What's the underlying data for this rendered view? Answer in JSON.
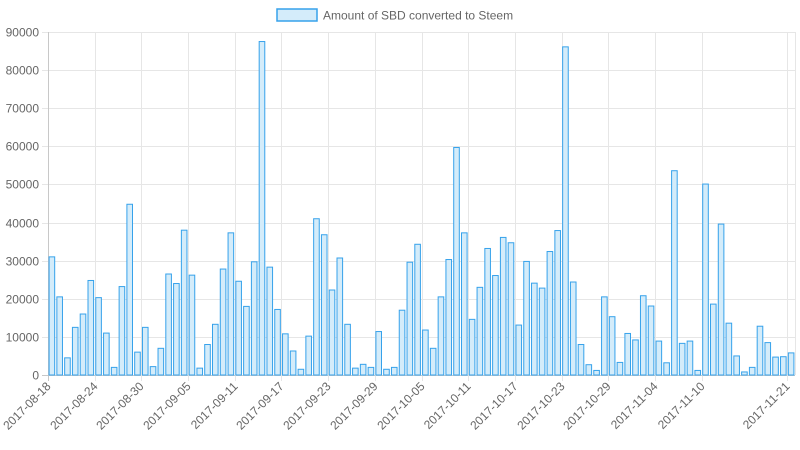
{
  "chart_data": {
    "type": "bar",
    "legend": {
      "position": "top",
      "label": "Amount of SBD converted to Steem"
    },
    "ylim": [
      0,
      90000
    ],
    "yticks": [
      0,
      10000,
      20000,
      30000,
      40000,
      50000,
      60000,
      70000,
      80000,
      90000
    ],
    "grid": true,
    "categories": [
      "2017-08-18",
      "2017-08-19",
      "2017-08-20",
      "2017-08-21",
      "2017-08-22",
      "2017-08-23",
      "2017-08-24",
      "2017-08-25",
      "2017-08-26",
      "2017-08-27",
      "2017-08-28",
      "2017-08-29",
      "2017-08-30",
      "2017-08-31",
      "2017-09-01",
      "2017-09-02",
      "2017-09-03",
      "2017-09-04",
      "2017-09-05",
      "2017-09-06",
      "2017-09-07",
      "2017-09-08",
      "2017-09-09",
      "2017-09-10",
      "2017-09-11",
      "2017-09-12",
      "2017-09-13",
      "2017-09-14",
      "2017-09-15",
      "2017-09-16",
      "2017-09-17",
      "2017-09-18",
      "2017-09-19",
      "2017-09-20",
      "2017-09-21",
      "2017-09-22",
      "2017-09-23",
      "2017-09-24",
      "2017-09-25",
      "2017-09-26",
      "2017-09-27",
      "2017-09-28",
      "2017-09-29",
      "2017-09-30",
      "2017-10-01",
      "2017-10-02",
      "2017-10-03",
      "2017-10-04",
      "2017-10-05",
      "2017-10-06",
      "2017-10-07",
      "2017-10-08",
      "2017-10-09",
      "2017-10-10",
      "2017-10-11",
      "2017-10-12",
      "2017-10-13",
      "2017-10-14",
      "2017-10-15",
      "2017-10-16",
      "2017-10-17",
      "2017-10-18",
      "2017-10-19",
      "2017-10-20",
      "2017-10-21",
      "2017-10-22",
      "2017-10-23",
      "2017-10-24",
      "2017-10-25",
      "2017-10-26",
      "2017-10-27",
      "2017-10-28",
      "2017-10-29",
      "2017-10-30",
      "2017-10-31",
      "2017-11-01",
      "2017-11-02",
      "2017-11-03",
      "2017-11-04",
      "2017-11-05",
      "2017-11-06",
      "2017-11-07",
      "2017-11-08",
      "2017-11-09",
      "2017-11-10",
      "2017-11-11",
      "2017-11-12",
      "2017-11-13",
      "2017-11-14",
      "2017-11-15",
      "2017-11-16",
      "2017-11-17",
      "2017-11-18",
      "2017-11-19",
      "2017-11-20",
      "2017-11-21"
    ],
    "xtick_labels": [
      "2017-08-18",
      "2017-08-24",
      "2017-08-30",
      "2017-09-05",
      "2017-09-11",
      "2017-09-17",
      "2017-09-23",
      "2017-09-29",
      "2017-10-05",
      "2017-10-11",
      "2017-10-17",
      "2017-10-23",
      "2017-10-29",
      "2017-11-04",
      "2017-11-10",
      "2017-11-21"
    ],
    "series": [
      {
        "name": "Amount of SBD converted to Steem",
        "values": [
          31000,
          20500,
          4500,
          12500,
          16000,
          24800,
          20300,
          11000,
          2000,
          23200,
          44800,
          6000,
          12500,
          2200,
          7000,
          26500,
          24000,
          38000,
          26200,
          1800,
          8000,
          13300,
          27800,
          37300,
          24600,
          18000,
          29700,
          87500,
          28300,
          17200,
          10800,
          6300,
          1500,
          10200,
          41000,
          36800,
          22300,
          30700,
          13300,
          1800,
          2800,
          2000,
          11400,
          1500,
          2000,
          17000,
          29600,
          34300,
          11800,
          7000,
          20500,
          30300,
          59700,
          37300,
          14600,
          23000,
          33200,
          26100,
          36100,
          34700,
          13100,
          29800,
          24100,
          22800,
          32400,
          37900,
          86100,
          24400,
          8000,
          2700,
          1200,
          20500,
          15300,
          3300,
          10900,
          9200,
          20800,
          18100,
          8900,
          3200,
          53600,
          8300,
          8900,
          1200,
          50100,
          18600,
          39600,
          13600,
          5000,
          800,
          2000,
          12800,
          8500,
          4700,
          4800,
          5800
        ],
        "fill": "#d4ecfa",
        "stroke": "#36a2eb"
      }
    ]
  }
}
